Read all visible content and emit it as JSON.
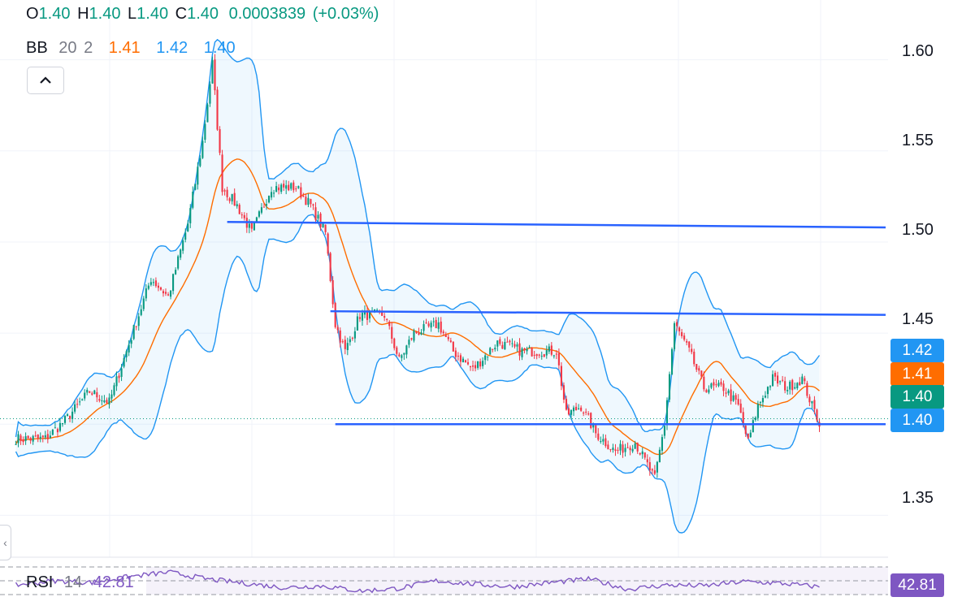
{
  "ohlc": {
    "o_label": "O",
    "o_value": "1.40",
    "h_label": "H",
    "h_value": "1.40",
    "l_label": "L",
    "l_value": "1.40",
    "c_label": "C",
    "c_value": "1.40",
    "change": "0.0003839",
    "change_pct": "(+0.03%)"
  },
  "bb": {
    "label": "BB",
    "period": "20",
    "mult": "2",
    "basis": "1.41",
    "upper": "1.42",
    "lower": "1.40"
  },
  "rsi": {
    "label": "RSI",
    "period": "14",
    "value": "42.81"
  },
  "price_tags": {
    "upper": "1.42",
    "basis": "1.41",
    "last": "1.40",
    "lower": "1.40"
  },
  "colors": {
    "up": "#089981",
    "down": "#f23645",
    "bb_band": "#2196f3",
    "bb_basis": "#ff6d00",
    "trendline": "#2962ff",
    "rsi": "#7e57c2",
    "last": "#089981"
  },
  "chart_data": {
    "type": "candlestick",
    "y_ticks": [
      "1.60",
      "1.55",
      "1.50",
      "1.45",
      "1.35"
    ],
    "ylim": [
      1.327,
      1.615
    ],
    "grid": true,
    "anchors": [
      [
        0,
        1.392
      ],
      [
        12,
        1.392
      ],
      [
        20,
        1.402
      ],
      [
        30,
        1.418
      ],
      [
        38,
        1.412
      ],
      [
        45,
        1.44
      ],
      [
        55,
        1.48
      ],
      [
        62,
        1.47
      ],
      [
        70,
        1.51
      ],
      [
        76,
        1.555
      ],
      [
        80,
        1.598
      ],
      [
        84,
        1.53
      ],
      [
        90,
        1.52
      ],
      [
        96,
        1.505
      ],
      [
        104,
        1.53
      ],
      [
        114,
        1.53
      ],
      [
        120,
        1.52
      ],
      [
        126,
        1.505
      ],
      [
        130,
        1.455
      ],
      [
        134,
        1.44
      ],
      [
        140,
        1.46
      ],
      [
        150,
        1.46
      ],
      [
        156,
        1.435
      ],
      [
        162,
        1.45
      ],
      [
        172,
        1.455
      ],
      [
        178,
        1.44
      ],
      [
        186,
        1.43
      ],
      [
        196,
        1.445
      ],
      [
        206,
        1.44
      ],
      [
        220,
        1.44
      ],
      [
        224,
        1.405
      ],
      [
        230,
        1.41
      ],
      [
        236,
        1.395
      ],
      [
        244,
        1.385
      ],
      [
        252,
        1.39
      ],
      [
        260,
        1.37
      ],
      [
        264,
        1.4
      ],
      [
        268,
        1.455
      ],
      [
        274,
        1.44
      ],
      [
        280,
        1.42
      ],
      [
        288,
        1.42
      ],
      [
        294,
        1.41
      ],
      [
        298,
        1.39
      ],
      [
        302,
        1.41
      ],
      [
        308,
        1.425
      ],
      [
        314,
        1.42
      ],
      [
        320,
        1.425
      ],
      [
        324,
        1.41
      ],
      [
        327,
        1.401
      ]
    ],
    "horizontal_lines": [
      {
        "from_bar": 86,
        "value_start": 1.511,
        "value_end": 1.508
      },
      {
        "from_bar": 128,
        "value_start": 1.462,
        "value_end": 1.46
      },
      {
        "from_bar": 130,
        "value_start": 1.4,
        "value_end": 1.4
      }
    ],
    "last_price": 1.403,
    "rsi_values": [
      45,
      50,
      48,
      55,
      60,
      52,
      47,
      42,
      44,
      38,
      41,
      50,
      46,
      43,
      48,
      52,
      40,
      45,
      44,
      49,
      47,
      42.81
    ]
  }
}
